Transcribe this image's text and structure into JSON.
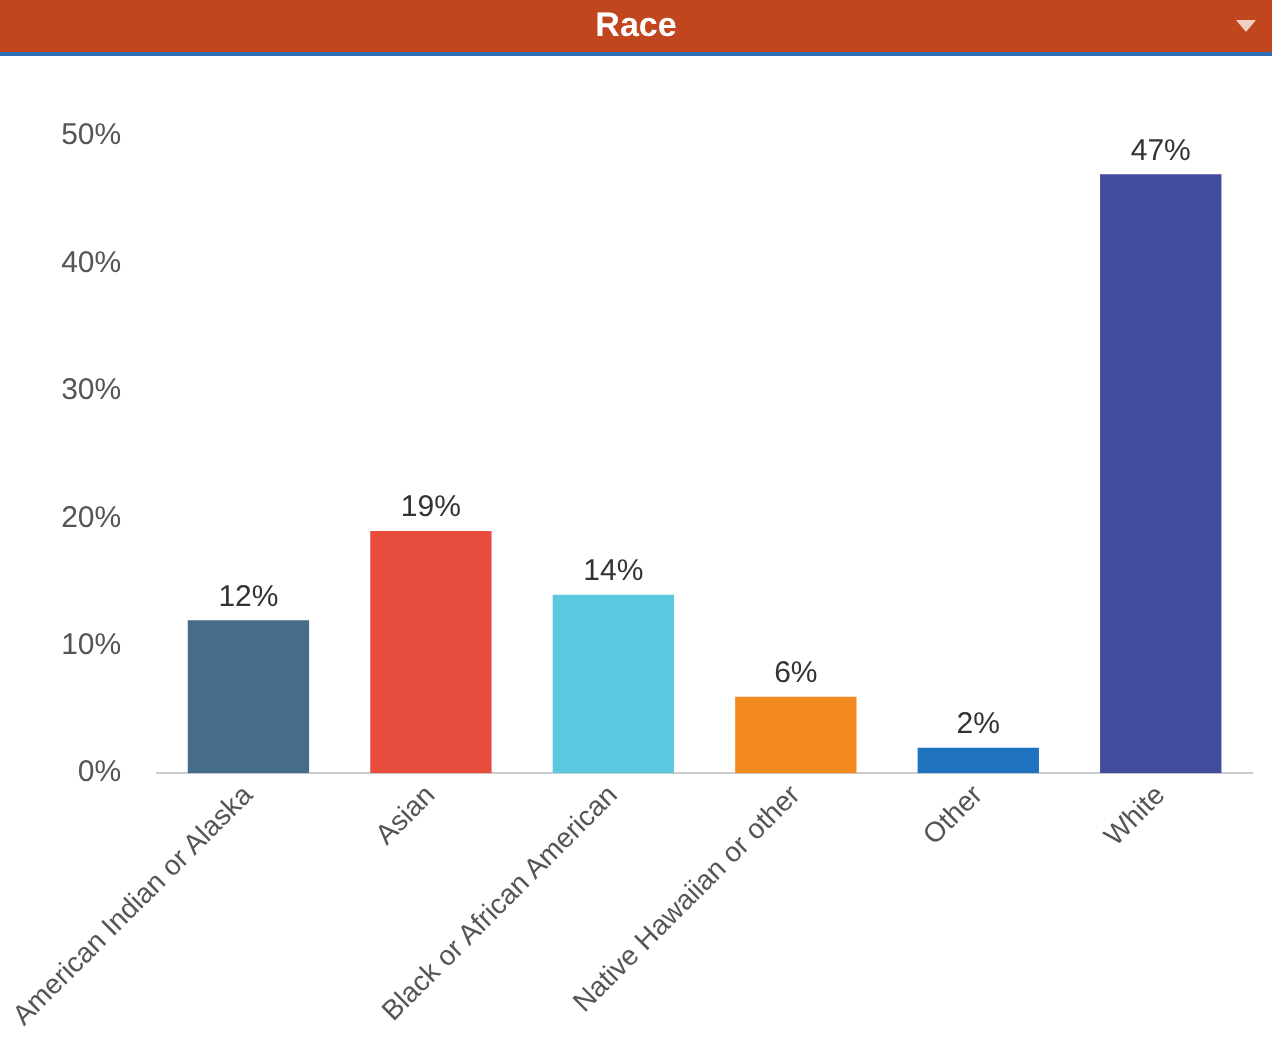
{
  "chart_data": {
    "type": "bar",
    "title": "Race",
    "categories": [
      "American Indian or Alaska",
      "Asian",
      "Black or African American",
      "Native Hawaiian or other",
      "Other",
      "White"
    ],
    "values": [
      12,
      19,
      14,
      6,
      2,
      47
    ],
    "colors": [
      "#456d8a",
      "#e84c3d",
      "#5bc8e0",
      "#f38a20",
      "#1f73be",
      "#424b9e"
    ],
    "value_labels": [
      "12%",
      "19%",
      "14%",
      "6%",
      "2%",
      "47%"
    ],
    "ylim": [
      0,
      50
    ],
    "yticks": [
      {
        "value": 0,
        "label": "0%"
      },
      {
        "value": 10,
        "label": "10%"
      },
      {
        "value": 20,
        "label": "20%"
      },
      {
        "value": 30,
        "label": "30%"
      },
      {
        "value": 40,
        "label": "40%"
      },
      {
        "value": 50,
        "label": "50%"
      }
    ],
    "grid": false,
    "legend": false
  }
}
